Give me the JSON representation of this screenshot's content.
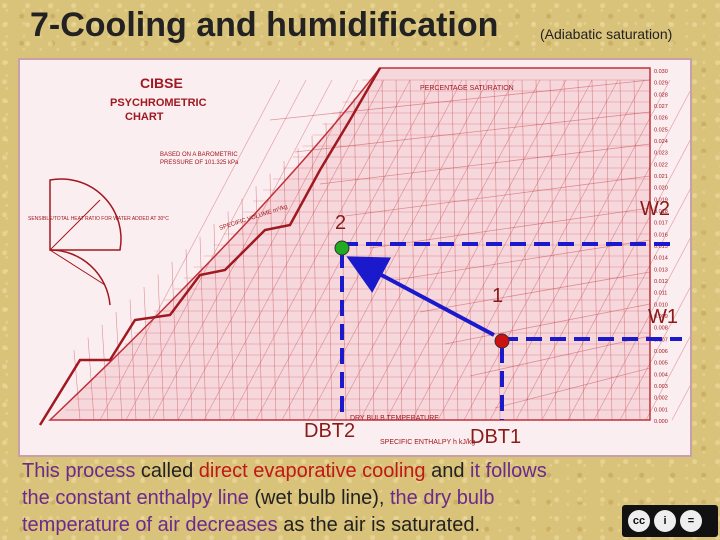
{
  "header": {
    "title": "7-Cooling and humidification",
    "subtitle": "(Adiabatic saturation)"
  },
  "chart": {
    "brand": "CIBSE",
    "name_line1": "PSYCHROMETRIC",
    "name_line2": "CHART",
    "note_line1": "BASED ON A BAROMETRIC",
    "note_line2": "PRESSURE OF 101.325 kPa",
    "top_label": "PERCENTAGE SATURATION",
    "bottom_label": "DRY BULB TEMPERATURE",
    "bottom_label2": "SPECIFIC ENTHALPY h kJ/kg",
    "protractor_label": "SENSIBLE/TOTAL HEAT RATIO FOR WATER ADDED AT 30°C",
    "specific_volume_label": "SPECIFIC VOLUME m³/kg",
    "moisture_ticks": [
      "0.030",
      "0.029",
      "0.028",
      "0.027",
      "0.026",
      "0.025",
      "0.024",
      "0.023",
      "0.022",
      "0.021",
      "0.020",
      "0.019",
      "0.018",
      "0.017",
      "0.016",
      "0.015",
      "0.014",
      "0.013",
      "0.012",
      "0.011",
      "0.010",
      "0.009",
      "0.008",
      "0.007",
      "0.006",
      "0.005",
      "0.004",
      "0.003",
      "0.002",
      "0.001",
      "0.000"
    ]
  },
  "process": {
    "state1_label": "1",
    "state2_label": "2",
    "w1_label": "W1",
    "w2_label": "W2",
    "dbt1_label": "DBT1",
    "dbt2_label": "DBT2",
    "line_color": "#1a1acc",
    "point1_color": "#cc1111",
    "point2_color": "#22aa22"
  },
  "caption": {
    "p1": "This process",
    "p2": " called ",
    "p3": "direct evaporative cooling",
    "p4": " and ",
    "p5": "it follows",
    "p6": "the constant enthalpy line",
    "p7": " (wet bulb line), ",
    "p8": "the dry bulb",
    "p9": "temperature of air decreases",
    "p10": " as the air is saturated."
  },
  "license": {
    "icons": [
      "cc",
      "i",
      "="
    ],
    "text": [
      "BY",
      "ND"
    ]
  }
}
